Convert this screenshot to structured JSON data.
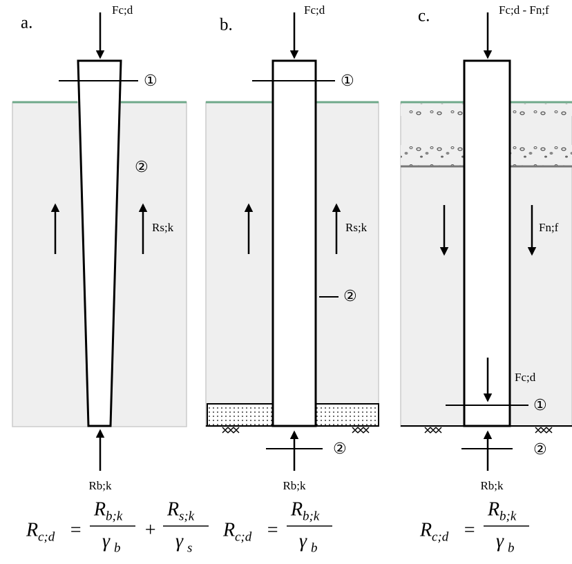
{
  "panels": [
    {
      "label": "a.",
      "top_load": "Fc;d",
      "markers": [
        "①",
        "②"
      ],
      "shaft_resistance": "Rs;k",
      "base_resistance": "Rb;k",
      "formula": {
        "lhs": {
          "symbol": "R",
          "subscript": "c;d"
        },
        "equals": "=",
        "terms": [
          {
            "num": {
              "symbol": "R",
              "subscript": "b;k"
            },
            "den": {
              "symbol": "γ",
              "subscript": "b"
            }
          },
          {
            "op": "+",
            "num": {
              "symbol": "R",
              "subscript": "s;k"
            },
            "den": {
              "symbol": "γ",
              "subscript": "s"
            }
          }
        ]
      }
    },
    {
      "label": "b.",
      "top_load": "Fc;d",
      "markers": [
        "①",
        "②",
        "②"
      ],
      "shaft_resistance": "Rs;k",
      "base_resistance": "Rb;k",
      "formula": {
        "lhs": {
          "symbol": "R",
          "subscript": "c;d"
        },
        "equals": "=",
        "terms": [
          {
            "num": {
              "symbol": "R",
              "subscript": "b;k"
            },
            "den": {
              "symbol": "γ",
              "subscript": "b"
            }
          }
        ]
      }
    },
    {
      "label": "c.",
      "top_load": "Fc;d - Fn;f",
      "negative_friction": "Fn;f",
      "design_load": "Fc;d",
      "markers": [
        "①",
        "②"
      ],
      "base_resistance": "Rb;k",
      "formula": {
        "lhs": {
          "symbol": "R",
          "subscript": "c;d"
        },
        "equals": "=",
        "terms": [
          {
            "num": {
              "symbol": "R",
              "subscript": "b;k"
            },
            "den": {
              "symbol": "γ",
              "subscript": "b"
            }
          }
        ]
      }
    }
  ]
}
